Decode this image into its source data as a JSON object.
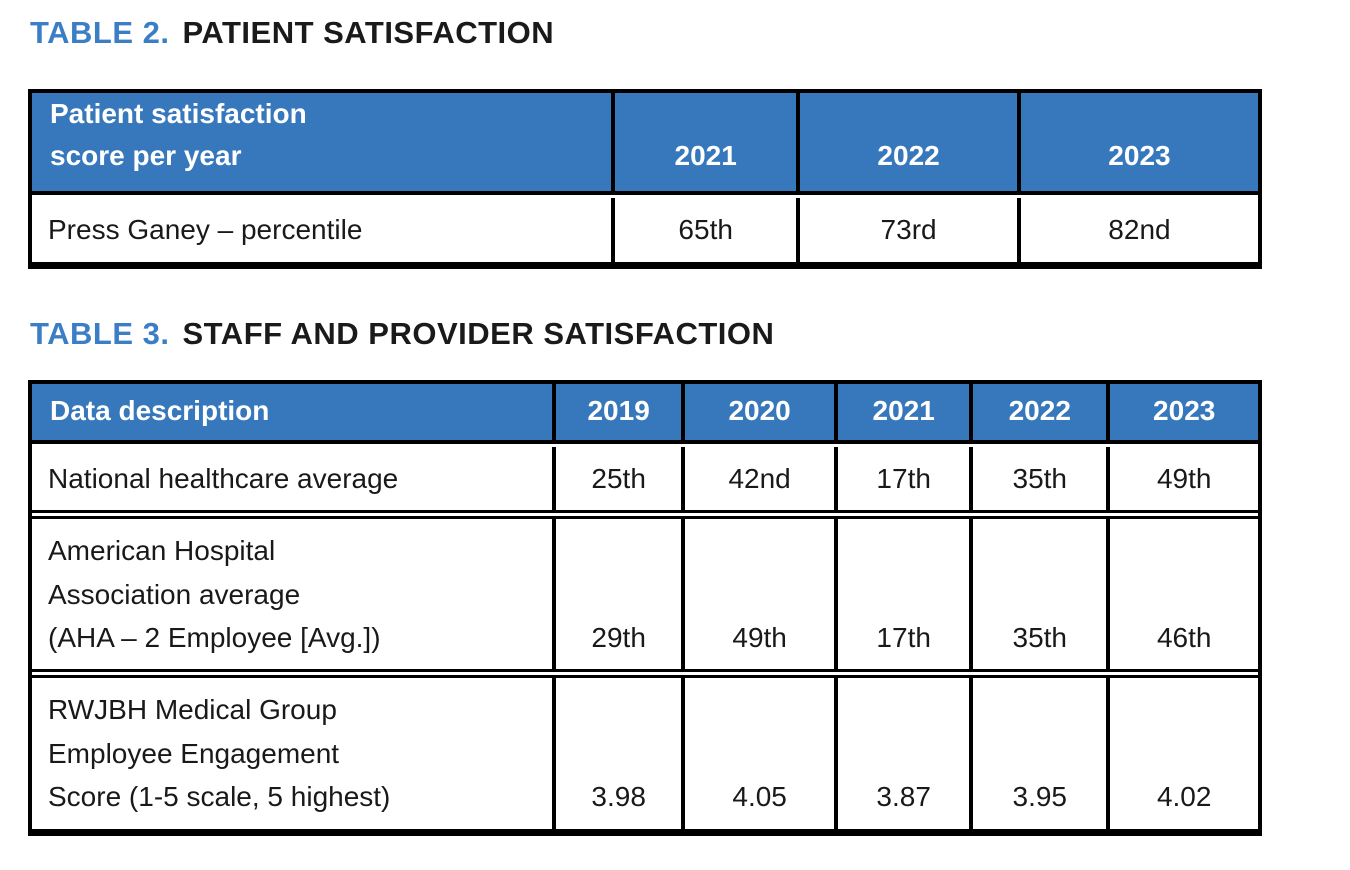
{
  "colors": {
    "title_blue": "#3B7EC6",
    "header_blue": "#3778BC",
    "header_text": "#FFFFFF",
    "body_text": "#191919",
    "border": "#000000",
    "background": "#FFFFFF"
  },
  "table2": {
    "title_label": "TABLE 2.",
    "title_text": "PATIENT SATISFACTION",
    "header": [
      "Patient satisfaction\nscore per year",
      "2021",
      "2022",
      "2023"
    ],
    "rows": [
      {
        "cells": [
          "Press Ganey – percentile",
          "65th",
          "73rd",
          "82nd"
        ]
      }
    ]
  },
  "table3": {
    "title_label": "TABLE 3.",
    "title_text": "STAFF AND PROVIDER SATISFACTION",
    "header": [
      "Data description",
      "2019",
      "2020",
      "2021",
      "2022",
      "2023"
    ],
    "rows": [
      {
        "cells": [
          "National healthcare average",
          "25th",
          "42nd",
          "17th",
          "35th",
          "49th"
        ]
      },
      {
        "cells": [
          "American Hospital\nAssociation average\n(AHA – 2 Employee [Avg.])",
          "29th",
          "49th",
          "17th",
          "35th",
          "46th"
        ]
      },
      {
        "cells": [
          "RWJBH Medical Group\nEmployee Engagement\nScore (1-5 scale, 5 highest)",
          "3.98",
          "4.05",
          "3.87",
          "3.95",
          "4.02"
        ]
      }
    ]
  }
}
